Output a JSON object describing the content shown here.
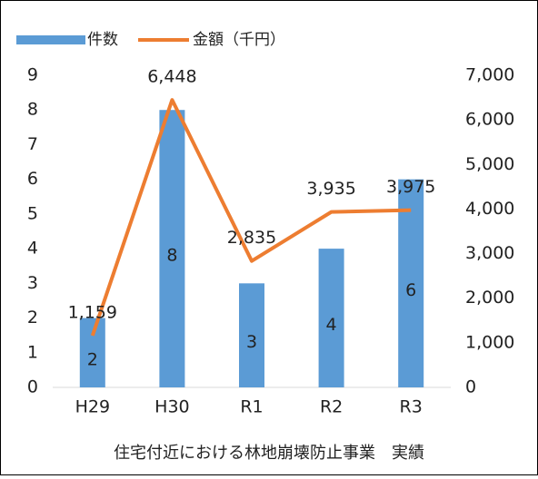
{
  "chart_data": {
    "type": "bar",
    "title": "住宅付近における林地崩壊防止事業　実績",
    "categories": [
      "H29",
      "H30",
      "R1",
      "R2",
      "R3"
    ],
    "series": [
      {
        "name": "件数",
        "type": "bar",
        "color": "#5b9bd5",
        "values": [
          2,
          8,
          3,
          4,
          6
        ]
      },
      {
        "name": "金額（千円）",
        "type": "line",
        "axis": "y2",
        "color": "#ed7d31",
        "values": [
          1159,
          6448,
          2835,
          3935,
          3975
        ],
        "value_labels": [
          "1,159",
          "6,448",
          "2,835",
          "3,935",
          "3,975"
        ]
      }
    ],
    "ylim": [
      0,
      9
    ],
    "yticks": [
      0,
      1,
      2,
      3,
      4,
      5,
      6,
      7,
      8,
      9
    ],
    "y2lim": [
      0,
      7000
    ],
    "y2ticks": [
      0,
      {
        "value": 1000,
        "label": "1,000"
      },
      {
        "value": 2000,
        "label": "2,000"
      },
      {
        "value": 3000,
        "label": "3,000"
      },
      {
        "value": 4000,
        "label": "4,000"
      },
      {
        "value": 5000,
        "label": "5,000"
      },
      {
        "value": 6000,
        "label": "6,000"
      },
      {
        "value": 7000,
        "label": "7,000"
      }
    ],
    "legend": "top-left"
  }
}
